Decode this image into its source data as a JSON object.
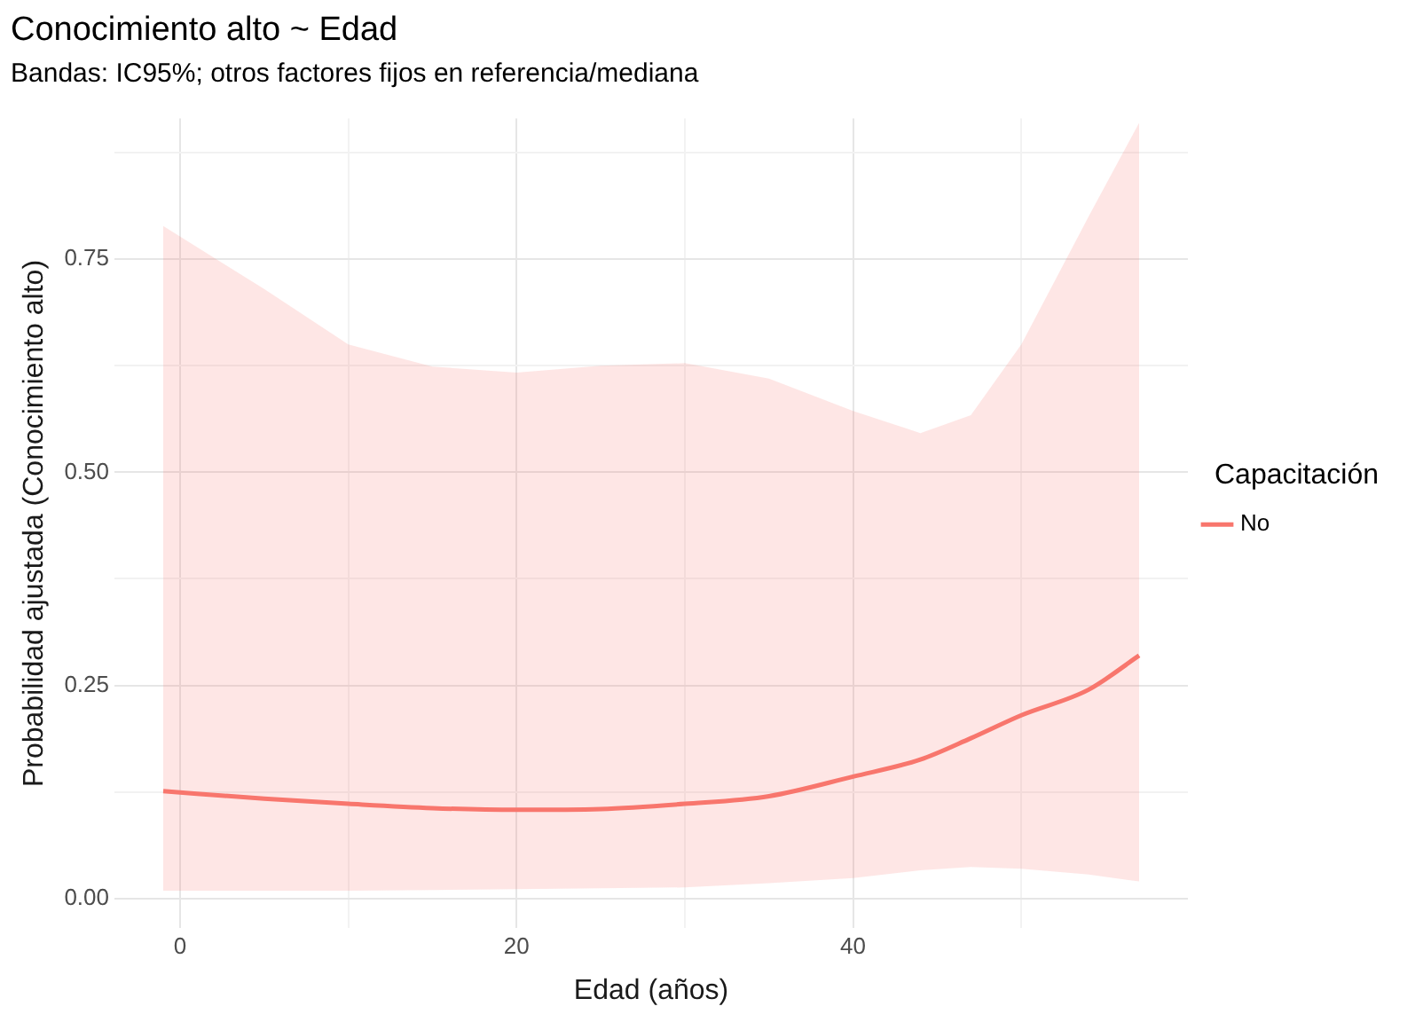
{
  "chart_data": {
    "type": "line",
    "title": "Conocimiento alto ~ Edad",
    "subtitle": "Bandas: IC95%; otros factores fijos en referencia/mediana",
    "xlabel": "Edad (años)",
    "ylabel": "Probabilidad ajustada (Conocimiento alto)",
    "legend_title": "Capacitación",
    "legend": "right",
    "grid": true,
    "marker": "none",
    "line_style": "solid",
    "x": [
      -1,
      5,
      10,
      15,
      20,
      25,
      30,
      35,
      40,
      44,
      47,
      50,
      54,
      57
    ],
    "series": [
      {
        "name": "No",
        "color": "#f8766d",
        "values": [
          0.126,
          0.117,
          0.111,
          0.106,
          0.104,
          0.105,
          0.111,
          0.12,
          0.143,
          0.163,
          0.188,
          0.215,
          0.245,
          0.285
        ],
        "lower": [
          0.009,
          0.009,
          0.009,
          0.01,
          0.011,
          0.012,
          0.013,
          0.018,
          0.024,
          0.033,
          0.037,
          0.035,
          0.028,
          0.02
        ],
        "upper": [
          0.789,
          0.715,
          0.65,
          0.624,
          0.617,
          0.625,
          0.628,
          0.61,
          0.572,
          0.546,
          0.567,
          0.65,
          0.8,
          0.91
        ]
      }
    ],
    "xlim": [
      -3.9,
      59.9
    ],
    "xticks": [
      0,
      {
        "value": 10,
        "label": null
      },
      20,
      {
        "value": 30,
        "label": null
      },
      40,
      {
        "value": 50,
        "label": null
      }
    ],
    "ylim": [
      -0.035,
      0.915
    ],
    "yticks": [
      {
        "value": 0,
        "label": "0.00"
      },
      {
        "value": 0.125,
        "label": null
      },
      {
        "value": 0.25,
        "label": "0.25"
      },
      {
        "value": 0.375,
        "label": null
      },
      {
        "value": 0.5,
        "label": "0.50"
      },
      {
        "value": 0.625,
        "label": null
      },
      {
        "value": 0.75,
        "label": "0.75"
      },
      {
        "value": 0.875,
        "label": null
      }
    ]
  }
}
